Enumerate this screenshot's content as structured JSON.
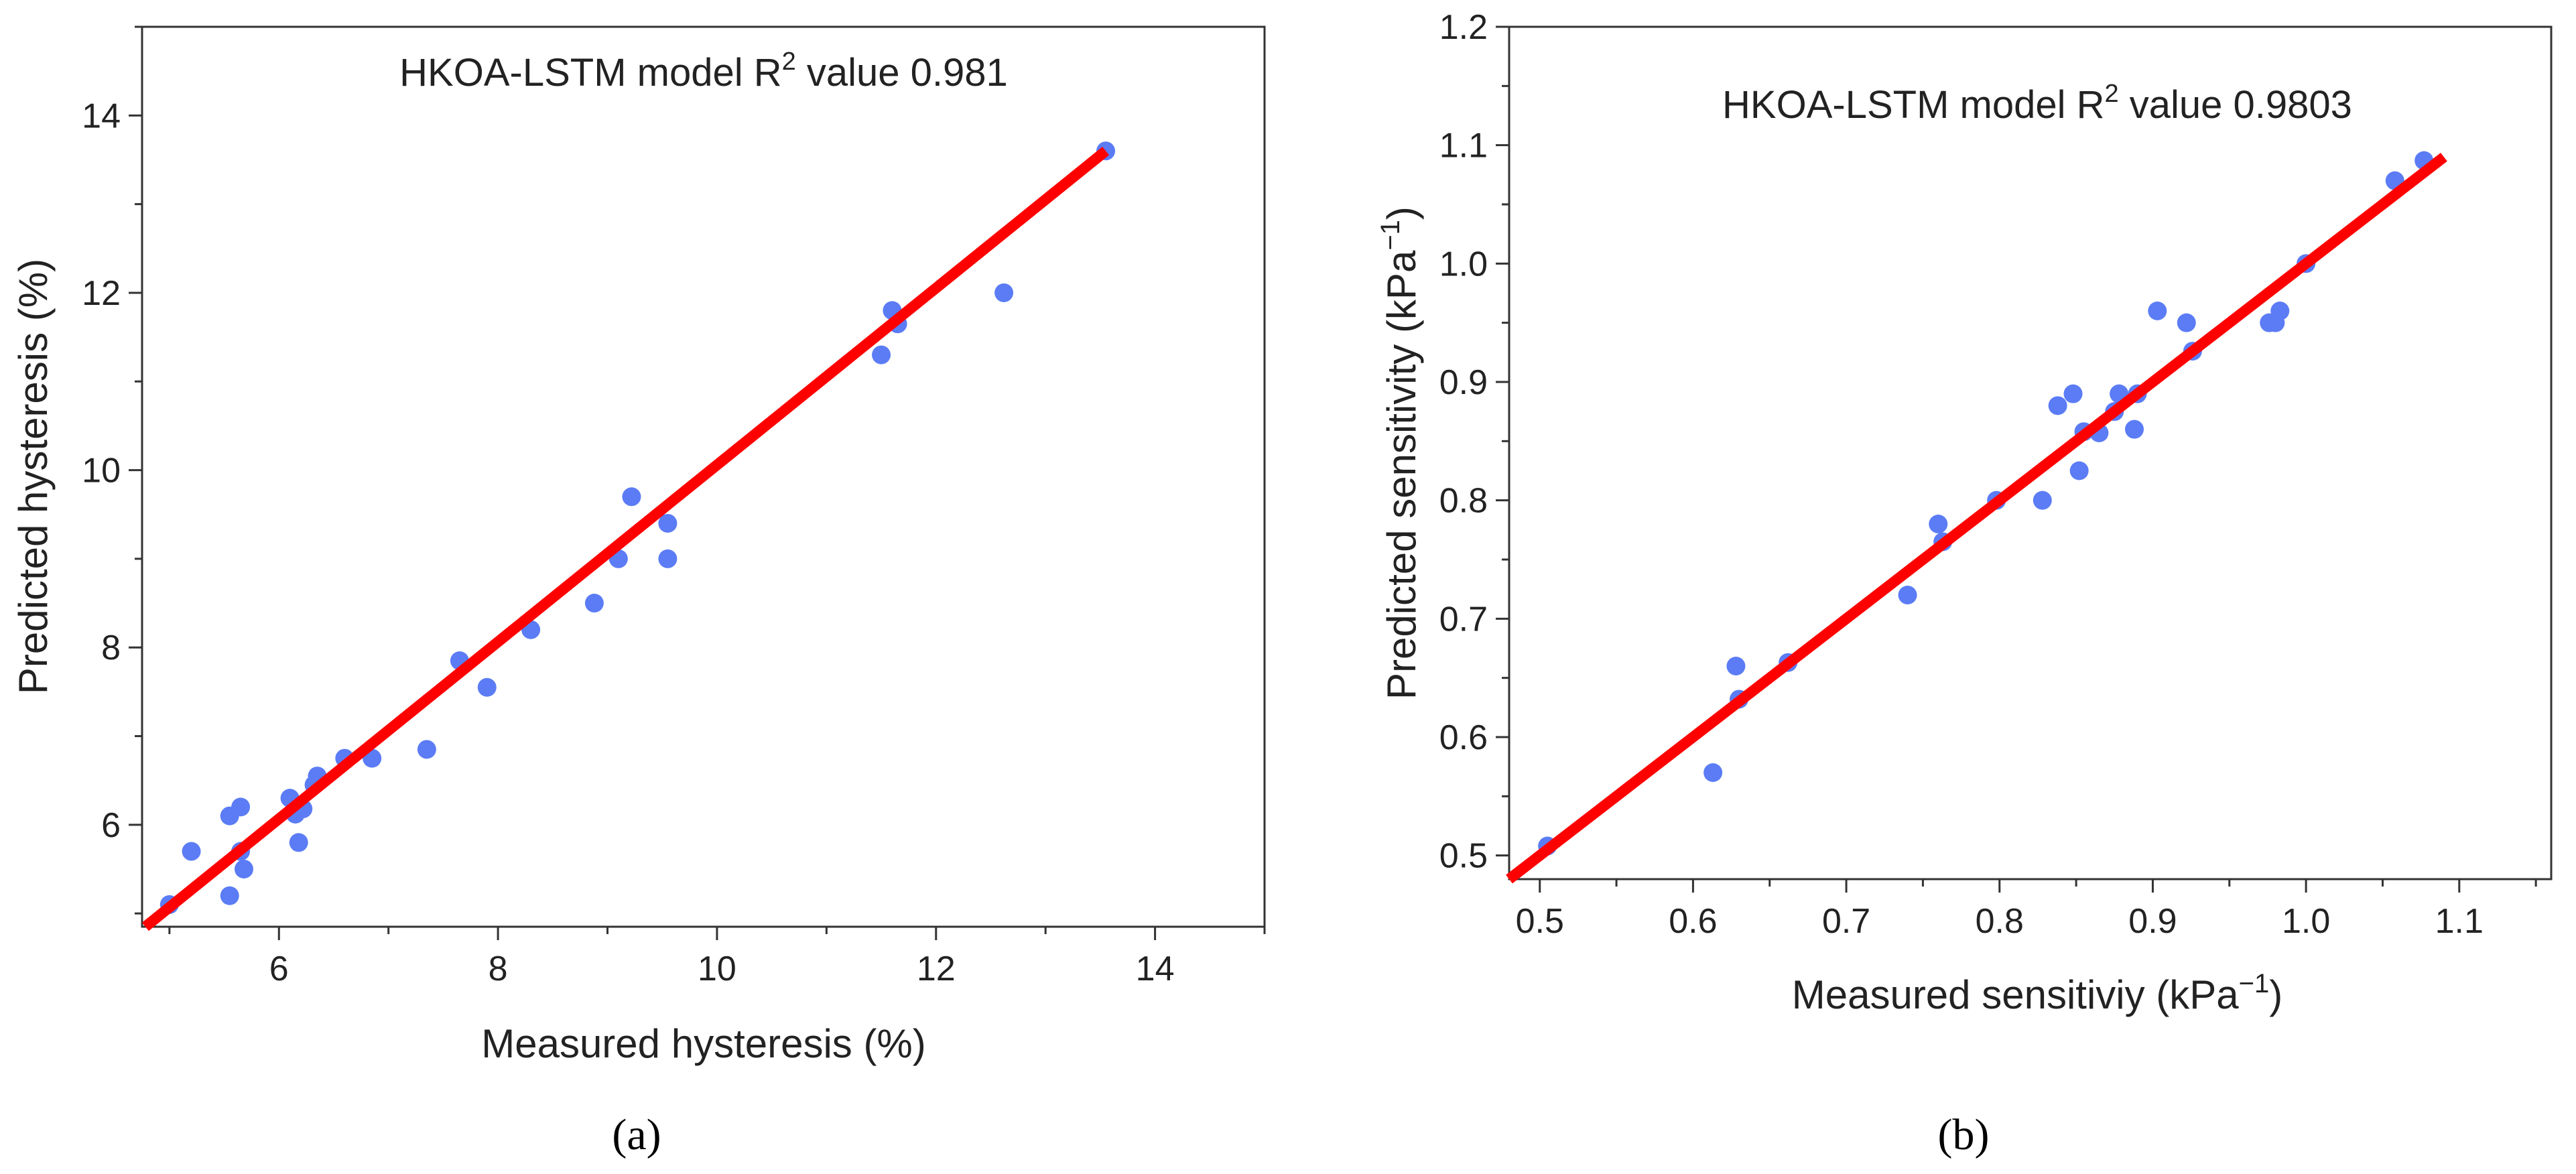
{
  "panel_labels": [
    "(a)",
    "(b)"
  ],
  "colors": {
    "points": "#5b7cf5",
    "fit_line": "#ff0000",
    "axis": "#333333",
    "text": "#222222"
  },
  "chart_data": [
    {
      "type": "scatter",
      "title": "HKOA-LSTM model R",
      "title_superscript": "2",
      "title_suffix": " value 0.981",
      "xlabel": "Measured hysteresis (%)",
      "ylabel": "Predicted hysteresis (%)",
      "xlim": [
        4.75,
        15.0
      ],
      "ylim": [
        4.85,
        15.0
      ],
      "xticks": [
        6,
        8,
        10,
        12,
        14
      ],
      "yticks": [
        6,
        8,
        10,
        12,
        14
      ],
      "fit_line": [
        [
          4.78,
          4.85
        ],
        [
          13.55,
          13.6
        ]
      ],
      "points": [
        [
          5.0,
          5.1
        ],
        [
          5.2,
          5.7
        ],
        [
          5.55,
          5.2
        ],
        [
          5.55,
          6.1
        ],
        [
          5.65,
          6.2
        ],
        [
          5.65,
          5.7
        ],
        [
          5.68,
          5.5
        ],
        [
          6.1,
          6.3
        ],
        [
          6.15,
          6.12
        ],
        [
          6.18,
          5.8
        ],
        [
          6.22,
          6.18
        ],
        [
          6.32,
          6.45
        ],
        [
          6.35,
          6.55
        ],
        [
          6.6,
          6.75
        ],
        [
          6.85,
          6.75
        ],
        [
          7.35,
          6.85
        ],
        [
          7.65,
          7.85
        ],
        [
          7.9,
          7.55
        ],
        [
          8.3,
          8.2
        ],
        [
          8.88,
          8.5
        ],
        [
          9.1,
          9.0
        ],
        [
          9.22,
          9.7
        ],
        [
          9.55,
          9.4
        ],
        [
          9.55,
          9.0
        ],
        [
          11.5,
          11.3
        ],
        [
          11.6,
          11.8
        ],
        [
          11.65,
          11.65
        ],
        [
          12.62,
          12.0
        ],
        [
          13.55,
          13.6
        ]
      ]
    },
    {
      "type": "scatter",
      "title": "HKOA-LSTM model R",
      "title_superscript": "2",
      "title_suffix": " value 0.9803",
      "xlabel": "Measured sensitiviy (kPa",
      "xlabel_superscript": "−1",
      "xlabel_suffix": ")",
      "ylabel": "Predicted sensitivity (kPa",
      "ylabel_superscript": "−1",
      "ylabel_suffix": ")",
      "xlim": [
        0.48,
        1.16
      ],
      "ylim": [
        0.48,
        1.2
      ],
      "xticks": [
        "0.5",
        "0.6",
        "0.7",
        "0.8",
        "0.9",
        "1.0",
        "1.1"
      ],
      "yticks": [
        "0.5",
        "0.6",
        "0.7",
        "0.8",
        "0.9",
        "1.0",
        "1.1",
        "1.2"
      ],
      "fit_line": [
        [
          0.48,
          0.48
        ],
        [
          1.09,
          1.09
        ]
      ],
      "points": [
        [
          0.505,
          0.508
        ],
        [
          0.613,
          0.57
        ],
        [
          0.628,
          0.66
        ],
        [
          0.63,
          0.632
        ],
        [
          0.662,
          0.663
        ],
        [
          0.74,
          0.72
        ],
        [
          0.76,
          0.78
        ],
        [
          0.763,
          0.765
        ],
        [
          0.798,
          0.8
        ],
        [
          0.828,
          0.8
        ],
        [
          0.838,
          0.88
        ],
        [
          0.848,
          0.89
        ],
        [
          0.852,
          0.825
        ],
        [
          0.855,
          0.858
        ],
        [
          0.865,
          0.857
        ],
        [
          0.875,
          0.875
        ],
        [
          0.878,
          0.89
        ],
        [
          0.888,
          0.86
        ],
        [
          0.89,
          0.89
        ],
        [
          0.903,
          0.96
        ],
        [
          0.922,
          0.95
        ],
        [
          0.926,
          0.926
        ],
        [
          0.976,
          0.95
        ],
        [
          0.98,
          0.95
        ],
        [
          0.983,
          0.96
        ],
        [
          1.0,
          1.0
        ],
        [
          1.058,
          1.07
        ],
        [
          1.077,
          1.087
        ]
      ]
    }
  ]
}
